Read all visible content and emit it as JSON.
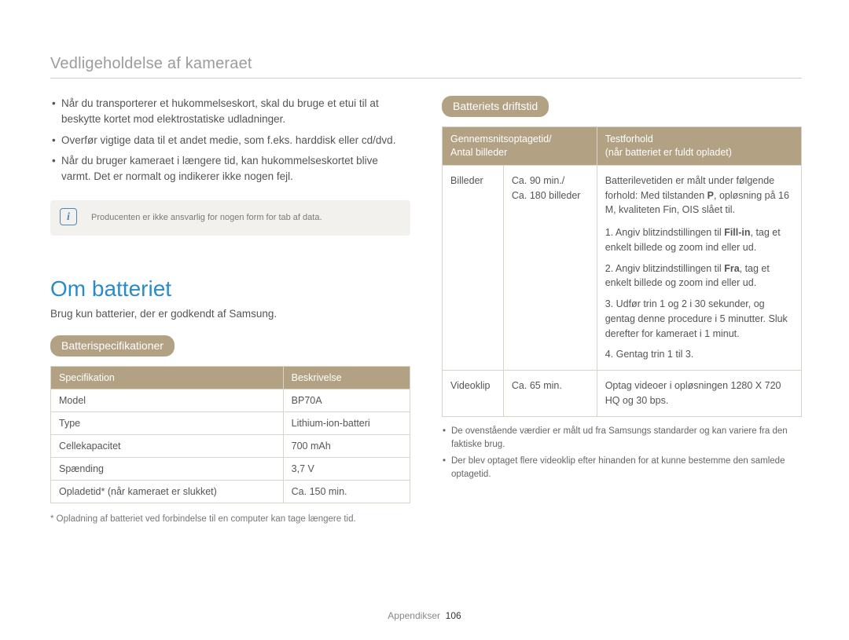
{
  "header": {
    "title": "Vedligeholdelse af kameraet"
  },
  "colors": {
    "accent_blue": "#2a8bc9",
    "pill_bg": "#b2a183",
    "table_border": "#d9d4c8",
    "note_bg": "#f3f1ed",
    "note_icon_border": "#4a88b6",
    "text": "#555555",
    "muted": "#888888"
  },
  "left": {
    "bullets": [
      "Når du transporterer et hukommelseskort, skal du bruge et etui til at beskytte kortet mod elektrostatiske udladninger.",
      "Overfør vigtige data til et andet medie, som f.eks. harddisk eller cd/dvd.",
      "Når du bruger kameraet i længere tid, kan hukommelseskortet blive varmt. Det er normalt og indikerer ikke nogen fejl."
    ],
    "note_text": "Producenten er ikke ansvarlig for nogen form for tab af data.",
    "section_heading": "Om batteriet",
    "section_sub": "Brug kun batterier, der er godkendt af Samsung.",
    "spec_pill": "Batterispecifikationer",
    "spec_headers": [
      "Specifikation",
      "Beskrivelse"
    ],
    "spec_rows": [
      [
        "Model",
        "BP70A"
      ],
      [
        "Type",
        "Lithium-ion-batteri"
      ],
      [
        "Cellekapacitet",
        "700 mAh"
      ],
      [
        "Spænding",
        "3,7 V"
      ],
      [
        "Opladetid* (når kameraet er slukket)",
        "Ca. 150 min."
      ]
    ],
    "spec_footnote": "* Opladning af batteriet ved forbindelse til en computer kan tage længere tid."
  },
  "right": {
    "life_pill": "Batteriets driftstid",
    "life_headers": [
      "Gennemsnitsoptagetid/\nAntal billeder",
      "Testforhold\n(når batteriet er fuldt opladet)"
    ],
    "life_rows": {
      "row1": {
        "label": "Billeder",
        "value": "Ca. 90 min./\nCa. 180 billeder",
        "desc_intro": "Batterilevetiden er målt under følgende forhold: Med tilstanden ",
        "desc_intro_after": ", opløsning på 16 M, kvaliteten Fin, OIS slået til.",
        "steps": [
          "Angiv blitzindstillingen til <b>Fill-in</b>, tag et enkelt billede og zoom ind eller ud.",
          "Angiv blitzindstillingen til <b>Fra</b>, tag et enkelt billede og zoom ind eller ud.",
          "Udfør trin 1 og 2 i 30 sekunder, og gentag denne procedure i 5 minutter. Sluk derefter for kameraet i 1 minut.",
          "Gentag trin 1 til 3."
        ]
      },
      "row2": {
        "label": "Videoklip",
        "value": "Ca. 65 min.",
        "desc": "Optag videoer i opløsningen 1280 X 720 HQ og 30 bps."
      }
    },
    "footnotes": [
      "De ovenstående værdier er målt ud fra Samsungs standarder og kan variere fra den faktiske brug.",
      "Der blev optaget flere videoklip efter hinanden for at kunne bestemme den samlede optagetid."
    ]
  },
  "footer": {
    "label": "Appendikser",
    "page": "106"
  }
}
